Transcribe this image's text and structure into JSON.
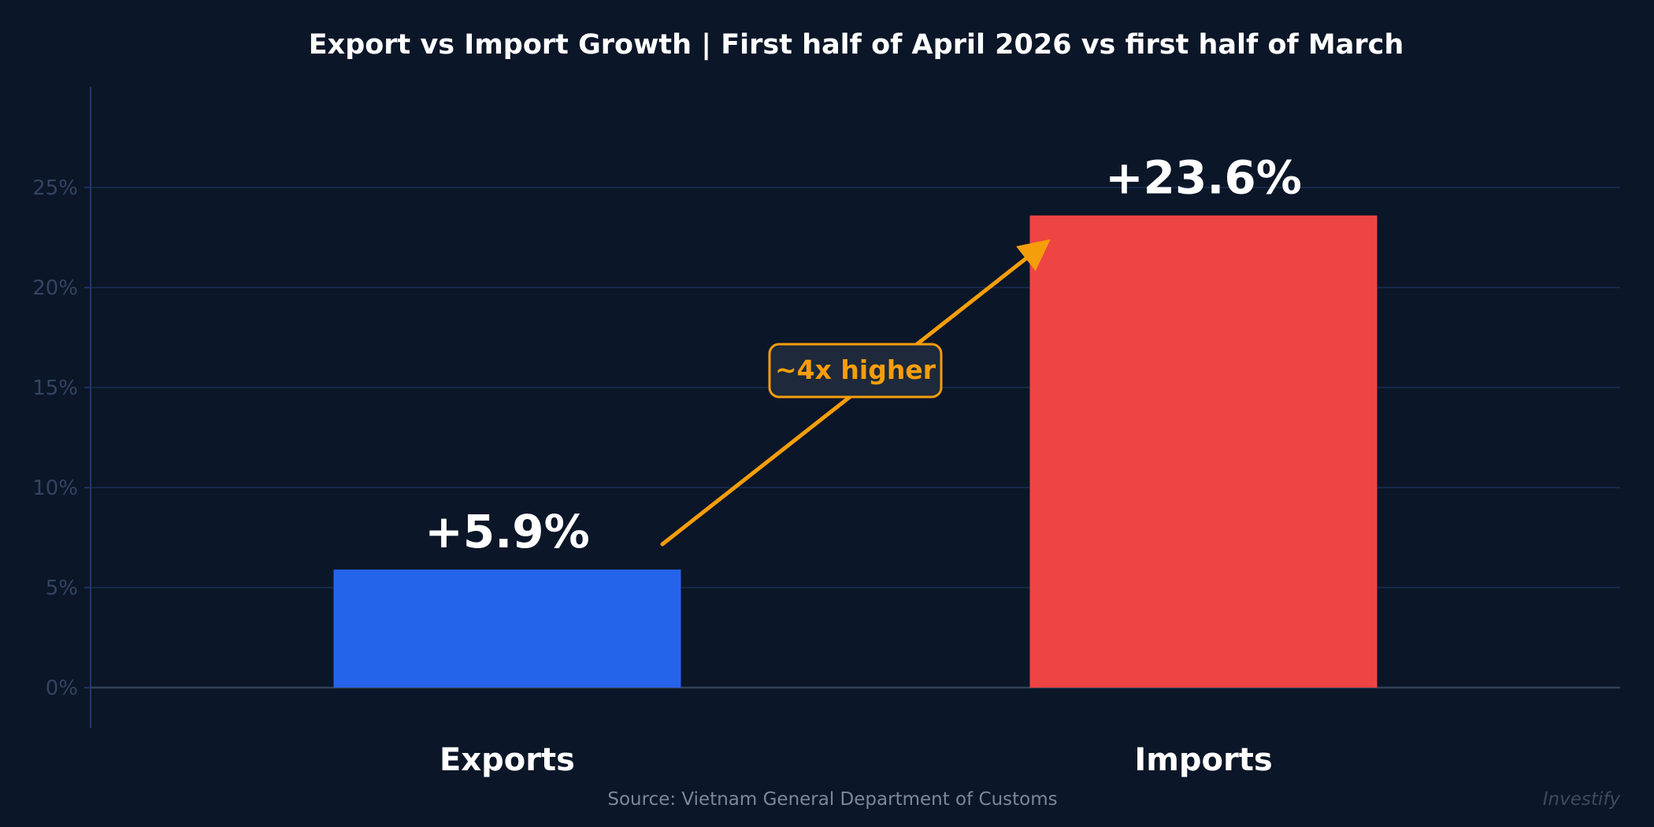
{
  "chart_data": {
    "type": "bar",
    "title": "Export vs Import Growth | First half of April 2026 vs first half of March",
    "categories": [
      "Exports",
      "Imports"
    ],
    "values": [
      5.9,
      23.6
    ],
    "value_labels": [
      "+5.9%",
      "+23.6%"
    ],
    "colors": [
      "#2563eb",
      "#ef4444"
    ],
    "ylim": [
      -2,
      30
    ],
    "yticks": [
      0,
      5,
      10,
      15,
      20,
      25
    ],
    "ytick_labels": [
      "0%",
      "5%",
      "10%",
      "15%",
      "20%",
      "25%"
    ],
    "grid": true,
    "annotation": {
      "text": "~4x higher",
      "color": "#f59e0b"
    },
    "source": "Source: Vietnam General Department of Customs",
    "watermark": "Investify"
  }
}
